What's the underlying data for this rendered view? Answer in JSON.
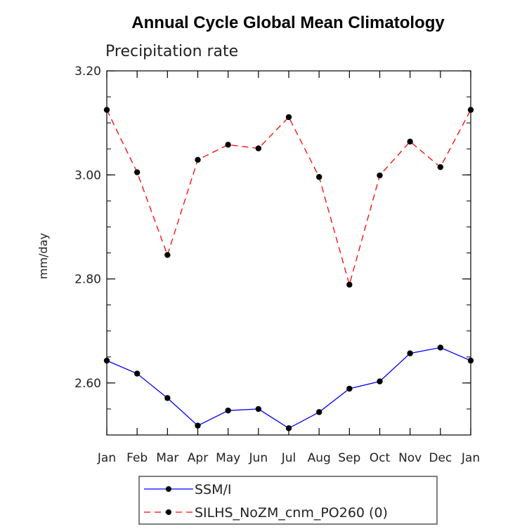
{
  "chart_data": {
    "type": "line",
    "title": "Annual Cycle Global Mean Climatology",
    "subtitle": "Precipitation rate",
    "ylabel": "mm/day",
    "xlabel": "",
    "ylim": [
      2.5,
      3.2
    ],
    "yticks": [
      2.6,
      2.8,
      3.0,
      3.2
    ],
    "ytick_labels": [
      "2.60",
      "2.80",
      "3.00",
      "3.20"
    ],
    "yminor_step": 0.05,
    "categories": [
      "Jan",
      "Feb",
      "Mar",
      "Apr",
      "May",
      "Jun",
      "Jul",
      "Aug",
      "Sep",
      "Oct",
      "Nov",
      "Dec",
      "Jan"
    ],
    "series": [
      {
        "name": "SSM/I",
        "color": "#0000ff",
        "dash": "solid",
        "values": [
          2.643,
          2.618,
          2.571,
          2.518,
          2.547,
          2.55,
          2.513,
          2.544,
          2.589,
          2.603,
          2.657,
          2.668,
          2.643
        ]
      },
      {
        "name": "SILHS_NoZM_cnm_PO260 (0)",
        "color": "#ff0000",
        "dash": "dashed",
        "values": [
          3.125,
          3.005,
          2.846,
          3.029,
          3.058,
          3.051,
          3.111,
          2.996,
          2.789,
          2.999,
          3.064,
          3.015,
          3.125
        ]
      }
    ],
    "legend_position": "bottom"
  }
}
